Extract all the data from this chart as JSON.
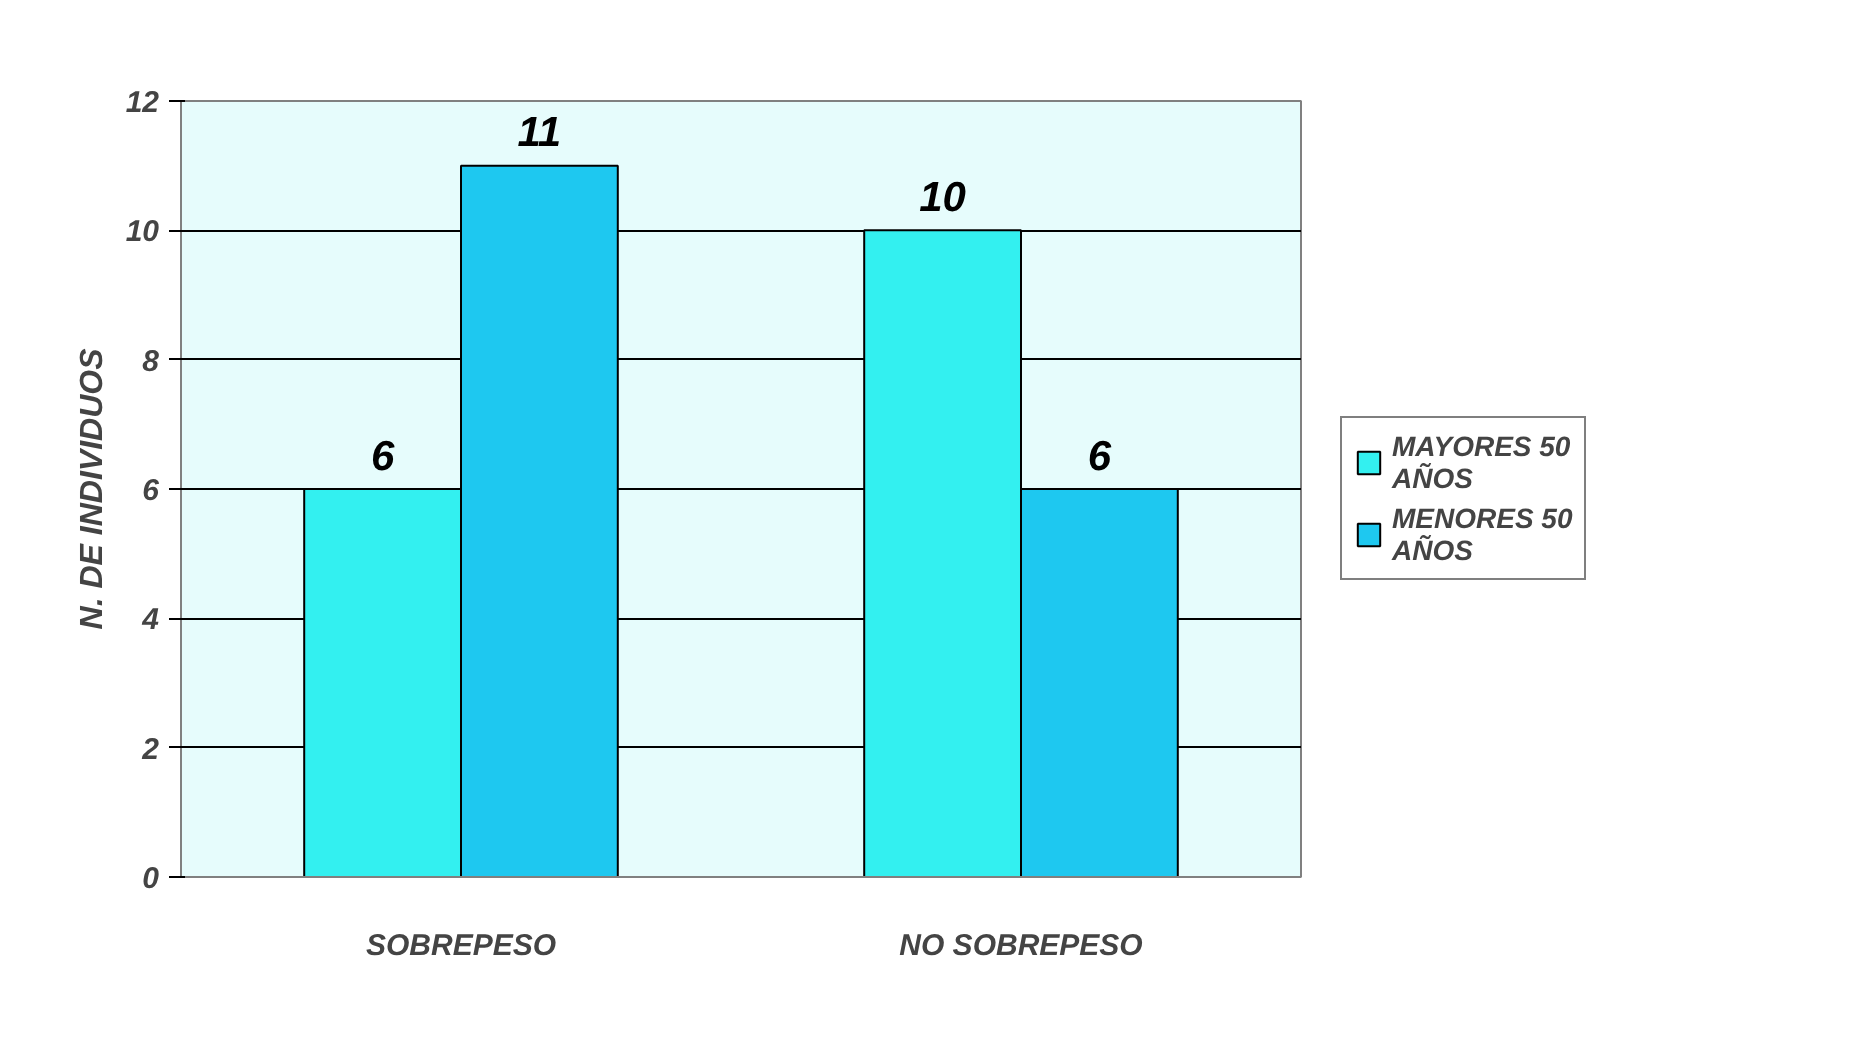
{
  "chart_data": {
    "type": "bar",
    "ylabel": "N. DE INDIVIDUOS",
    "categories": [
      "SOBREPESO",
      "NO SOBREPESO"
    ],
    "series": [
      {
        "name": "MAYORES 50\nAÑOS",
        "color": "#33f0f0",
        "values": [
          6,
          10
        ]
      },
      {
        "name": "MENORES 50\nAÑOS",
        "color": "#1ec8f0",
        "values": [
          11,
          6
        ]
      }
    ],
    "ylim": [
      0,
      12
    ],
    "yticks": [
      0,
      2,
      4,
      6,
      8,
      10,
      12
    ],
    "grid": "y",
    "legend": "right",
    "data_labels": true
  }
}
